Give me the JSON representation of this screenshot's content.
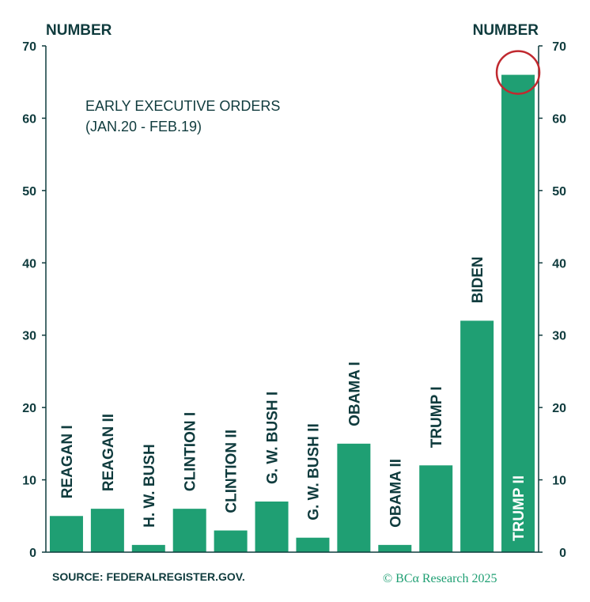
{
  "chart_data": {
    "type": "bar",
    "left_axis_title": "NUMBER",
    "right_axis_title": "NUMBER",
    "annotation_lines": [
      "EARLY EXECUTIVE ORDERS",
      "(JAN.20 - FEB.19)"
    ],
    "categories": [
      "REAGAN I",
      "REAGAN II",
      "H. W. BUSH",
      "CLINTION I",
      "CLINTION II",
      "G. W. BUSH I",
      "G. W. BUSH II",
      "OBAMA I",
      "OBAMA II",
      "TRUMP I",
      "BIDEN",
      "TRUMP II"
    ],
    "values": [
      5,
      6,
      1,
      6,
      3,
      7,
      2,
      15,
      1,
      12,
      32,
      66
    ],
    "ylim": [
      0,
      70
    ],
    "yticks": [
      0,
      10,
      20,
      30,
      40,
      50,
      60,
      70
    ],
    "grid": false,
    "highlighted_category": "TRUMP II",
    "colors": {
      "bar": "#1f9f73",
      "text": "#0f3b3d",
      "axis": "#0f3b3d",
      "highlight_circle": "#c0292f",
      "label_inside": "#ffffff"
    },
    "source": "SOURCE: FEDERALREGISTER.GOV.",
    "credit": "© BCα Research 2025"
  }
}
